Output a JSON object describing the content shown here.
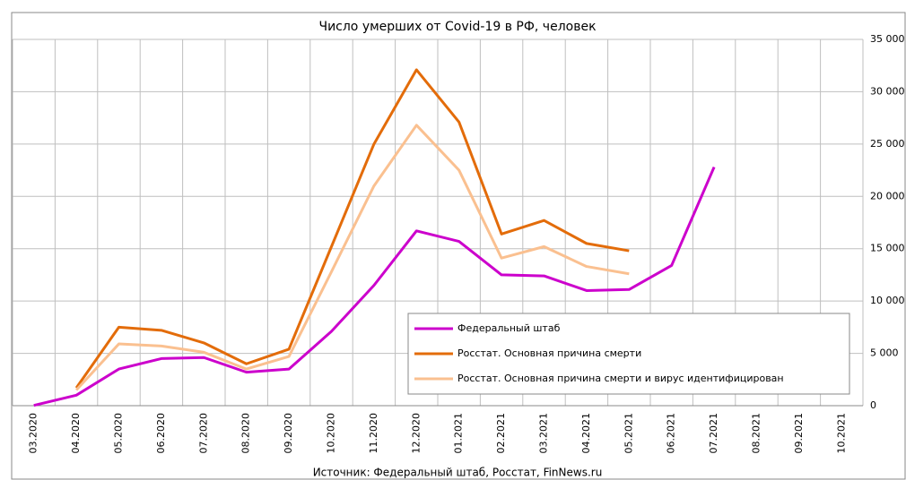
{
  "chart_data": {
    "type": "line",
    "title": "Число умерших от Covid-19 в РФ, человек",
    "source": "Источник: Федеральный штаб, Росстат, FinNews.ru",
    "categories": [
      "03.2020",
      "04.2020",
      "05.2020",
      "06.2020",
      "07.2020",
      "08.2020",
      "09.2020",
      "10.2020",
      "11.2020",
      "12.2020",
      "01.2021",
      "02.2021",
      "03.2021",
      "04.2021",
      "05.2021",
      "06.2021",
      "07.2021",
      "08.2021",
      "09.2021",
      "10.2021"
    ],
    "series": [
      {
        "name": "Федеральный штаб",
        "color": "#cc00cc",
        "values": [
          30,
          1000,
          3500,
          4500,
          4600,
          3200,
          3500,
          7100,
          11500,
          16700,
          15700,
          12500,
          12400,
          11000,
          11100,
          13400,
          22800,
          null,
          null,
          null
        ]
      },
      {
        "name": "Росстат. Основная причина смерти",
        "color": "#e36c0a",
        "values": [
          null,
          1700,
          7500,
          7200,
          6000,
          4000,
          5400,
          15200,
          25000,
          32100,
          27100,
          16400,
          17700,
          15500,
          14800,
          null,
          null,
          null,
          null,
          null
        ]
      },
      {
        "name": "Росстат. Основная причина смерти и вирус идентифицирован",
        "color": "#fac090",
        "values": [
          null,
          1500,
          5900,
          5700,
          5100,
          3500,
          4700,
          12800,
          21000,
          26800,
          22500,
          14100,
          15200,
          13300,
          12600,
          null,
          null,
          null,
          null,
          null
        ]
      }
    ],
    "ylim": [
      0,
      35000
    ],
    "yticks": [
      0,
      {
        "value": 5000,
        "label": "5 000"
      },
      {
        "value": 10000,
        "label": "10 000"
      },
      {
        "value": 15000,
        "label": "15 000"
      },
      {
        "value": 20000,
        "label": "20 000"
      },
      {
        "value": 25000,
        "label": "25 000"
      },
      {
        "value": 30000,
        "label": "30 000"
      },
      {
        "value": 35000,
        "label": "35 000"
      }
    ],
    "grid": true,
    "legend": "lower right"
  }
}
